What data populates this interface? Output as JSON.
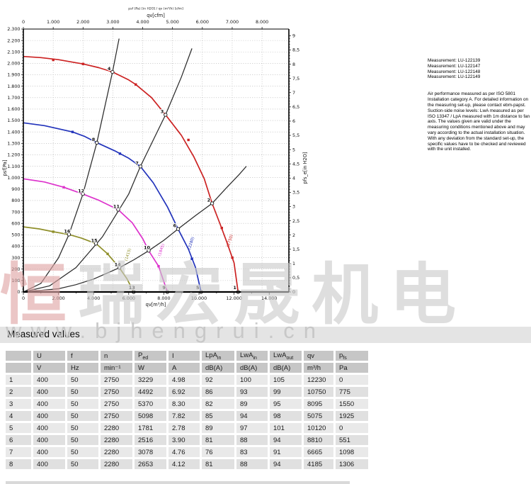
{
  "watermark": {
    "cn_text": "恒瑞宏晟机电",
    "url_text": "www.bjhengrui.cn"
  },
  "notes": {
    "measurements": [
      "Measurement: LU-122139",
      "Measurement: LU-122147",
      "Measurement: LU-122148",
      "Measurement: LU-122149"
    ],
    "body": "Air performance measured as per ISO 5801 Installation category A. For detailed information on the measuring set-up, please contact ebm-papst. Suction-side noise levels: LwA measured as per ISO 13347 / LpA measured with 1m distance to fan axis. The values given are valid under the measuring conditions mentioned above and may vary according to the actual installation situation. With any deviation from the standard set-up, the specific values have to be checked and reviewed with the unit installed."
  },
  "table": {
    "title": "Measured values",
    "columns": [
      {
        "label": ""
      },
      {
        "label": "U"
      },
      {
        "label": "f"
      },
      {
        "label": "n"
      },
      {
        "label": "P",
        "sub": "ed"
      },
      {
        "label": "I"
      },
      {
        "label": "LpA",
        "sub": "in"
      },
      {
        "label": "LwA",
        "sub": "in"
      },
      {
        "label": "LwA",
        "sub": "out"
      },
      {
        "label": "qv"
      },
      {
        "label": "p",
        "sub": "fs"
      }
    ],
    "units": [
      "",
      "V",
      "Hz",
      "min⁻¹",
      "W",
      "A",
      "dB(A)",
      "dB(A)",
      "dB(A)",
      "m³/h",
      "Pa"
    ],
    "rows": [
      [
        "1",
        "400",
        "50",
        "2750",
        "3229",
        "4.98",
        "92",
        "100",
        "105",
        "12230",
        "0"
      ],
      [
        "2",
        "400",
        "50",
        "2750",
        "4492",
        "6.92",
        "86",
        "93",
        "99",
        "10750",
        "775"
      ],
      [
        "3",
        "400",
        "50",
        "2750",
        "5370",
        "8.30",
        "82",
        "89",
        "95",
        "8095",
        "1550"
      ],
      [
        "4",
        "400",
        "50",
        "2750",
        "5098",
        "7.82",
        "85",
        "94",
        "98",
        "5075",
        "1925"
      ],
      [
        "5",
        "400",
        "50",
        "2280",
        "1781",
        "2.78",
        "89",
        "97",
        "101",
        "10120",
        "0"
      ],
      [
        "6",
        "400",
        "50",
        "2280",
        "2516",
        "3.90",
        "81",
        "88",
        "94",
        "8810",
        "551"
      ],
      [
        "7",
        "400",
        "50",
        "2280",
        "3078",
        "4.76",
        "76",
        "83",
        "91",
        "6665",
        "1098"
      ],
      [
        "8",
        "400",
        "50",
        "2280",
        "2653",
        "4.12",
        "81",
        "88",
        "94",
        "4185",
        "1306"
      ]
    ]
  },
  "chart_data": {
    "type": "line",
    "title": "psf (Pa) [in H2O] / qv (m³/h) [cfm]",
    "axes": {
      "top": {
        "label": "qv[cfm]",
        "ticks": [
          "0",
          "1.000",
          "2.000",
          "3.000",
          "4.000",
          "5.000",
          "6.000",
          "7.000",
          "8.000"
        ],
        "tick_step_m3h": 1699.01
      },
      "bottom": {
        "label": "qv[m³/h]",
        "ticks": [
          "0",
          "2.000",
          "4.000",
          "6.000",
          "8.000",
          "10.000",
          "12.000",
          "14.000"
        ],
        "tick_step": 2000,
        "range": [
          0,
          15120
        ],
        "grid": "off"
      },
      "left": {
        "label": "psf[Pa]",
        "ticks": [
          "0",
          "100",
          "200",
          "300",
          "400",
          "500",
          "600",
          "700",
          "800",
          "900",
          "1.000",
          "1.100",
          "1.200",
          "1.300",
          "1.400",
          "1.500",
          "1.600",
          "1.700",
          "1.800",
          "1.900",
          "2.000",
          "2.100",
          "2.200",
          "2.300"
        ],
        "tick_step": 100,
        "range": [
          0,
          2300
        ],
        "grid": "dashed"
      },
      "right": {
        "label": "pfs_e[in H2O]",
        "ticks": [
          "0",
          "0,5",
          "1",
          "1,5",
          "2",
          "2,5",
          "3",
          "3,5",
          "4",
          "4,5",
          "5",
          "5,5",
          "6",
          "6,5",
          "7",
          "7,5",
          "8",
          "8,5",
          "9"
        ],
        "tick_step_inH2O": 0.5,
        "pa_per_inH2O": 249.089
      }
    },
    "series": [
      {
        "name": "fan-curve-2750",
        "color": "#cc2222",
        "points": [
          [
            0,
            2060
          ],
          [
            1000,
            2050
          ],
          [
            2000,
            2032
          ],
          [
            3000,
            2005
          ],
          [
            3400,
            1995
          ],
          [
            4300,
            1962
          ],
          [
            5075,
            1925
          ],
          [
            6000,
            1855
          ],
          [
            6400,
            1815
          ],
          [
            7300,
            1700
          ],
          [
            8095,
            1550
          ],
          [
            9000,
            1370
          ],
          [
            9700,
            1185
          ],
          [
            10300,
            990
          ],
          [
            10750,
            775
          ],
          [
            11200,
            595
          ],
          [
            11600,
            430
          ],
          [
            12000,
            255
          ],
          [
            12230,
            0
          ]
        ],
        "markers": [
          [
            1700,
            2030
          ],
          [
            3400,
            1995
          ],
          [
            6400,
            1815
          ],
          [
            9400,
            1330
          ],
          [
            11300,
            560
          ],
          [
            11900,
            300
          ]
        ],
        "tag": {
          "text": "(2750)",
          "q": 11700,
          "p": 390
        }
      },
      {
        "name": "fan-curve-2280",
        "color": "#2233bb",
        "points": [
          [
            0,
            1480
          ],
          [
            1200,
            1455
          ],
          [
            2800,
            1400
          ],
          [
            3500,
            1360
          ],
          [
            4185,
            1306
          ],
          [
            5200,
            1235
          ],
          [
            6000,
            1170
          ],
          [
            6665,
            1098
          ],
          [
            7400,
            955
          ],
          [
            8200,
            745
          ],
          [
            8810,
            551
          ],
          [
            9400,
            375
          ],
          [
            9800,
            215
          ],
          [
            10120,
            0
          ]
        ],
        "markers": [
          [
            2800,
            1400
          ],
          [
            5500,
            1210
          ],
          [
            9600,
            290
          ]
        ],
        "tag": {
          "text": "(2280)",
          "q": 9500,
          "p": 370
        }
      },
      {
        "name": "fan-curve-1845",
        "color": "#dd33cc",
        "points": [
          [
            0,
            990
          ],
          [
            1200,
            962
          ],
          [
            2300,
            916
          ],
          [
            3390,
            857
          ],
          [
            4300,
            802
          ],
          [
            5400,
            720
          ],
          [
            6200,
            605
          ],
          [
            6800,
            465
          ],
          [
            7138,
            361
          ],
          [
            7700,
            225
          ],
          [
            8200,
            0
          ]
        ],
        "markers": [
          [
            2300,
            916
          ],
          [
            7700,
            225
          ]
        ],
        "tag": {
          "text": "(1845)",
          "q": 7800,
          "p": 310
        }
      },
      {
        "name": "fan-curve-1415",
        "color": "#8f8f2a",
        "points": [
          [
            0,
            570
          ],
          [
            900,
            552
          ],
          [
            1700,
            527
          ],
          [
            2597,
            503
          ],
          [
            3300,
            472
          ],
          [
            4136,
            423
          ],
          [
            4800,
            333
          ],
          [
            5467,
            212
          ],
          [
            5900,
            115
          ],
          [
            6280,
            0
          ]
        ],
        "markers": [
          [
            1700,
            527
          ],
          [
            4800,
            333
          ]
        ],
        "tag": {
          "text": "(1415)",
          "q": 5900,
          "p": 270
        }
      }
    ],
    "system_lines": [
      {
        "name": "system-line-A",
        "points": [
          [
            0,
            0
          ],
          [
            1000,
            75
          ],
          [
            2000,
            298
          ],
          [
            2597,
            503
          ],
          [
            3390,
            857
          ],
          [
            4185,
            1306
          ],
          [
            5075,
            1925
          ],
          [
            5450,
            2216
          ]
        ]
      },
      {
        "name": "system-line-B",
        "points": [
          [
            0,
            0
          ],
          [
            1500,
            54
          ],
          [
            3000,
            214
          ],
          [
            4500,
            482
          ],
          [
            6000,
            857
          ],
          [
            6665,
            1098
          ],
          [
            8095,
            1550
          ],
          [
            9000,
            1880
          ],
          [
            9600,
            2130
          ]
        ]
      },
      {
        "name": "system-line-C",
        "points": [
          [
            0,
            0
          ],
          [
            2000,
            28
          ],
          [
            3000,
            64
          ],
          [
            4000,
            113
          ],
          [
            5467,
            212
          ],
          [
            6300,
            282
          ],
          [
            7138,
            361
          ],
          [
            8000,
            452
          ],
          [
            8810,
            551
          ],
          [
            9800,
            668
          ],
          [
            10750,
            775
          ],
          [
            11500,
            900
          ],
          [
            12300,
            1030
          ],
          [
            12700,
            1100
          ]
        ]
      }
    ],
    "operating_points": [
      {
        "n": 1,
        "q": 12230,
        "p": 0
      },
      {
        "n": 2,
        "q": 10750,
        "p": 775
      },
      {
        "n": 3,
        "q": 8095,
        "p": 1550
      },
      {
        "n": 4,
        "q": 5075,
        "p": 1925
      },
      {
        "n": 5,
        "q": 10120,
        "p": 0
      },
      {
        "n": 6,
        "q": 8810,
        "p": 551
      },
      {
        "n": 7,
        "q": 6665,
        "p": 1098
      },
      {
        "n": 8,
        "q": 4185,
        "p": 1306
      },
      {
        "n": 9,
        "q": 8200,
        "p": 0
      },
      {
        "n": 10,
        "q": 7138,
        "p": 361
      },
      {
        "n": 11,
        "q": 5400,
        "p": 720
      },
      {
        "n": 12,
        "q": 3390,
        "p": 857
      },
      {
        "n": 13,
        "q": 6280,
        "p": 0
      },
      {
        "n": 14,
        "q": 5467,
        "p": 212
      },
      {
        "n": 15,
        "q": 4136,
        "p": 423
      },
      {
        "n": 16,
        "q": 2597,
        "p": 503
      }
    ],
    "legend_position": "none"
  }
}
